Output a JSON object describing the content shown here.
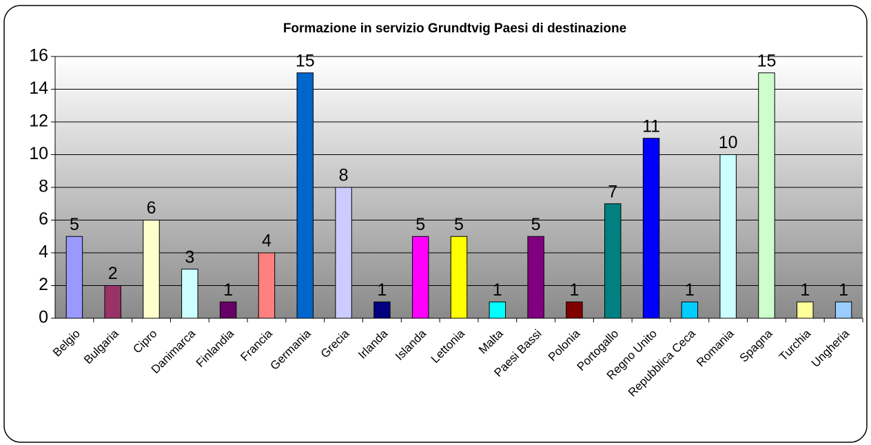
{
  "chart_data": {
    "type": "bar",
    "title": "Formazione in servizio Grundtvig  Paesi di destinazione",
    "categories": [
      "Belgio",
      "Bulgaria",
      "Cipro",
      "Danimarca",
      "Finlandia",
      "Francia",
      "Germania",
      "Grecia",
      "Irlanda",
      "Islanda",
      "Lettonia",
      "Malta",
      "Paesi Bassi",
      "Polonia",
      "Portogallo",
      "Regno Unito",
      "Repubblica Ceca",
      "Romania",
      "Spagna",
      "Turchia",
      "Ungheria"
    ],
    "values": [
      5,
      2,
      6,
      3,
      1,
      4,
      15,
      8,
      1,
      5,
      5,
      1,
      5,
      1,
      7,
      11,
      1,
      10,
      15,
      1,
      1
    ],
    "colors": [
      "#9999ff",
      "#993366",
      "#ffffcc",
      "#ccffff",
      "#660066",
      "#ff8080",
      "#0066cc",
      "#ccccff",
      "#000080",
      "#ff00ff",
      "#ffff00",
      "#00ffff",
      "#800080",
      "#800000",
      "#008080",
      "#0000ff",
      "#00ccff",
      "#ccffff",
      "#ccffcc",
      "#ffff99",
      "#99ccff"
    ],
    "ylim": [
      0,
      16
    ],
    "yticks": [
      0,
      2,
      4,
      6,
      8,
      10,
      12,
      14,
      16
    ],
    "grid": true
  }
}
